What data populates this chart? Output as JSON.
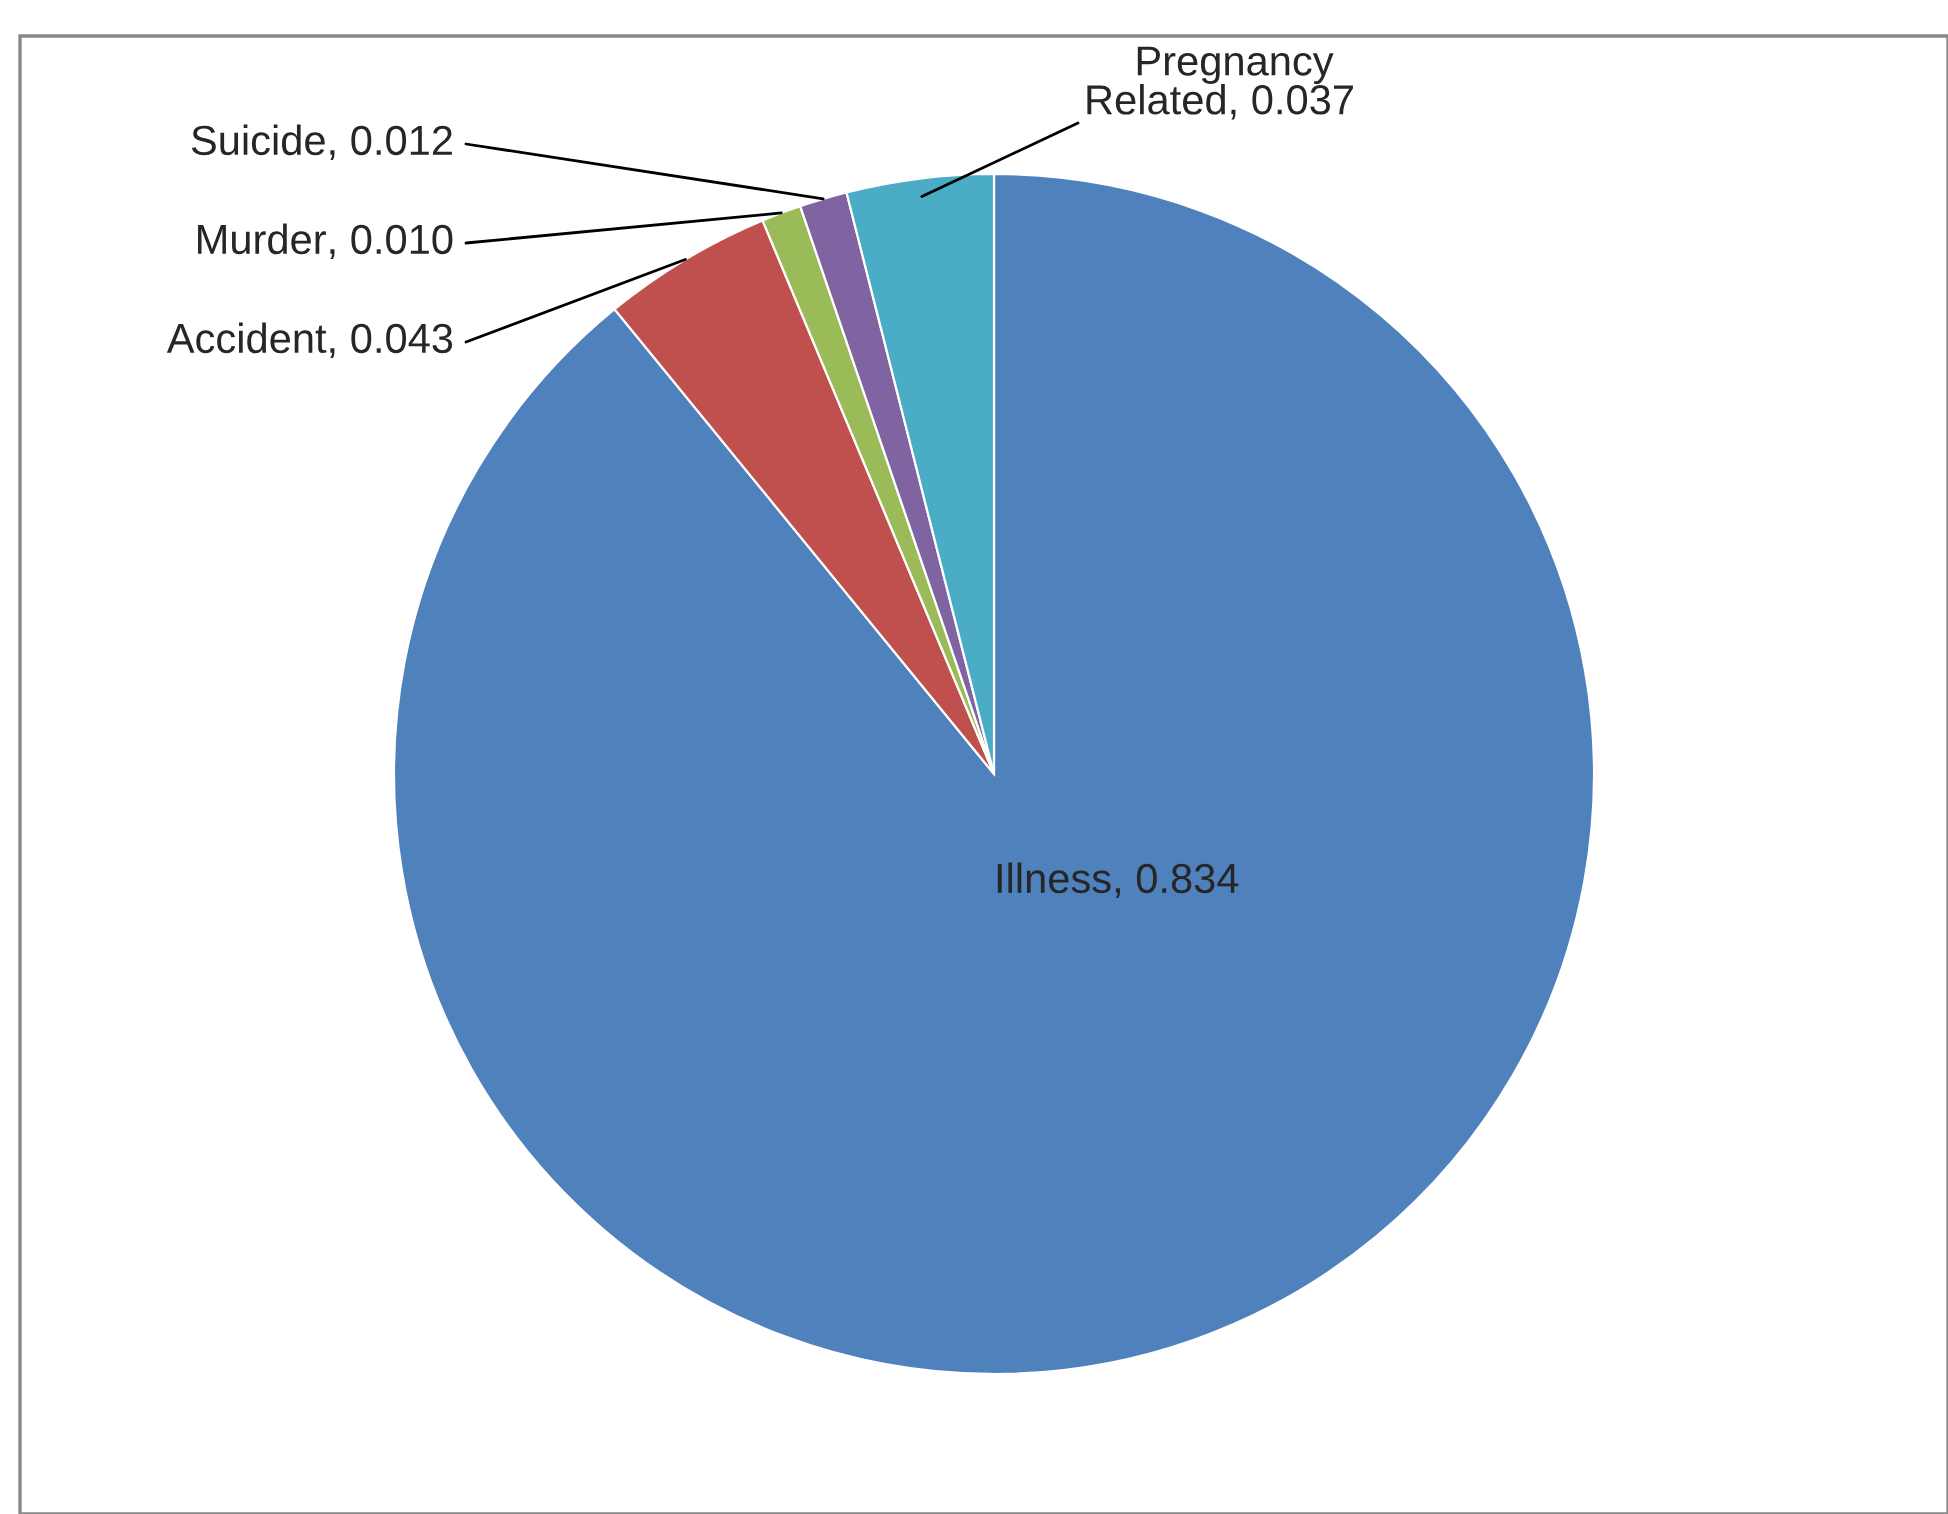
{
  "chart_data": {
    "type": "pie",
    "categories": [
      "Illness",
      "Accident",
      "Murder",
      "Suicide",
      "Pregnancy Related"
    ],
    "values": [
      0.834,
      0.043,
      0.01,
      0.012,
      0.037
    ],
    "colors": [
      "#4f81bd",
      "#c0504d",
      "#9bbb59",
      "#8064a2",
      "#4bacc6"
    ],
    "value_labels": [
      ", 0.834",
      ", 0.043",
      ", 0.010",
      ", 0.012",
      ", 0.037"
    ]
  }
}
